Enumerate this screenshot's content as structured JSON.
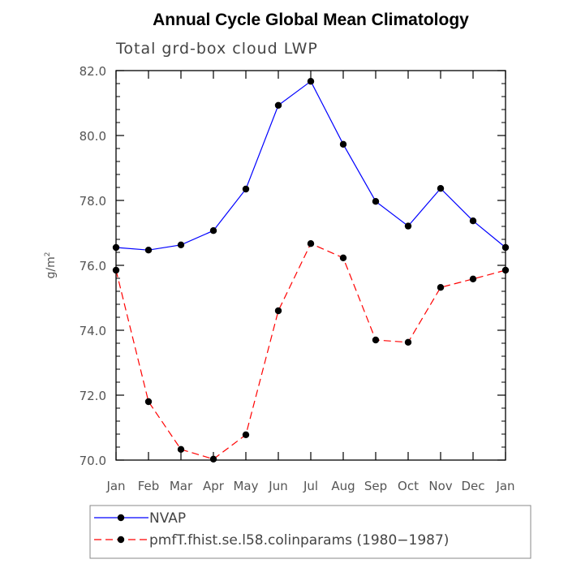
{
  "chart_data": {
    "type": "line",
    "title": "Annual Cycle Global Mean Climatology",
    "subtitle": "Total grd-box cloud LWP",
    "ylabel_base": "g/m",
    "ylabel_sup": "2",
    "ylim": [
      70.0,
      82.0
    ],
    "yticks": [
      "70.0",
      "72.0",
      "74.0",
      "76.0",
      "78.0",
      "80.0",
      "82.0"
    ],
    "categories": [
      "Jan",
      "Feb",
      "Mar",
      "Apr",
      "May",
      "Jun",
      "Jul",
      "Aug",
      "Sep",
      "Oct",
      "Nov",
      "Dec",
      "Jan"
    ],
    "grid": false,
    "legend_position": "bottom",
    "series": [
      {
        "name": "NVAP",
        "color": "#0000ff",
        "dash": "solid",
        "values": [
          76.55,
          76.47,
          76.63,
          77.07,
          78.35,
          80.93,
          81.67,
          79.73,
          77.97,
          77.21,
          78.37,
          77.37,
          76.55
        ]
      },
      {
        "name": "pmfT.fhist.se.l58.colinparams (1980−1987)",
        "color": "#ff0000",
        "dash": "dashed",
        "values": [
          75.85,
          71.8,
          70.33,
          70.03,
          70.78,
          74.6,
          76.67,
          76.23,
          73.7,
          73.63,
          75.32,
          75.58,
          75.85
        ]
      }
    ]
  }
}
